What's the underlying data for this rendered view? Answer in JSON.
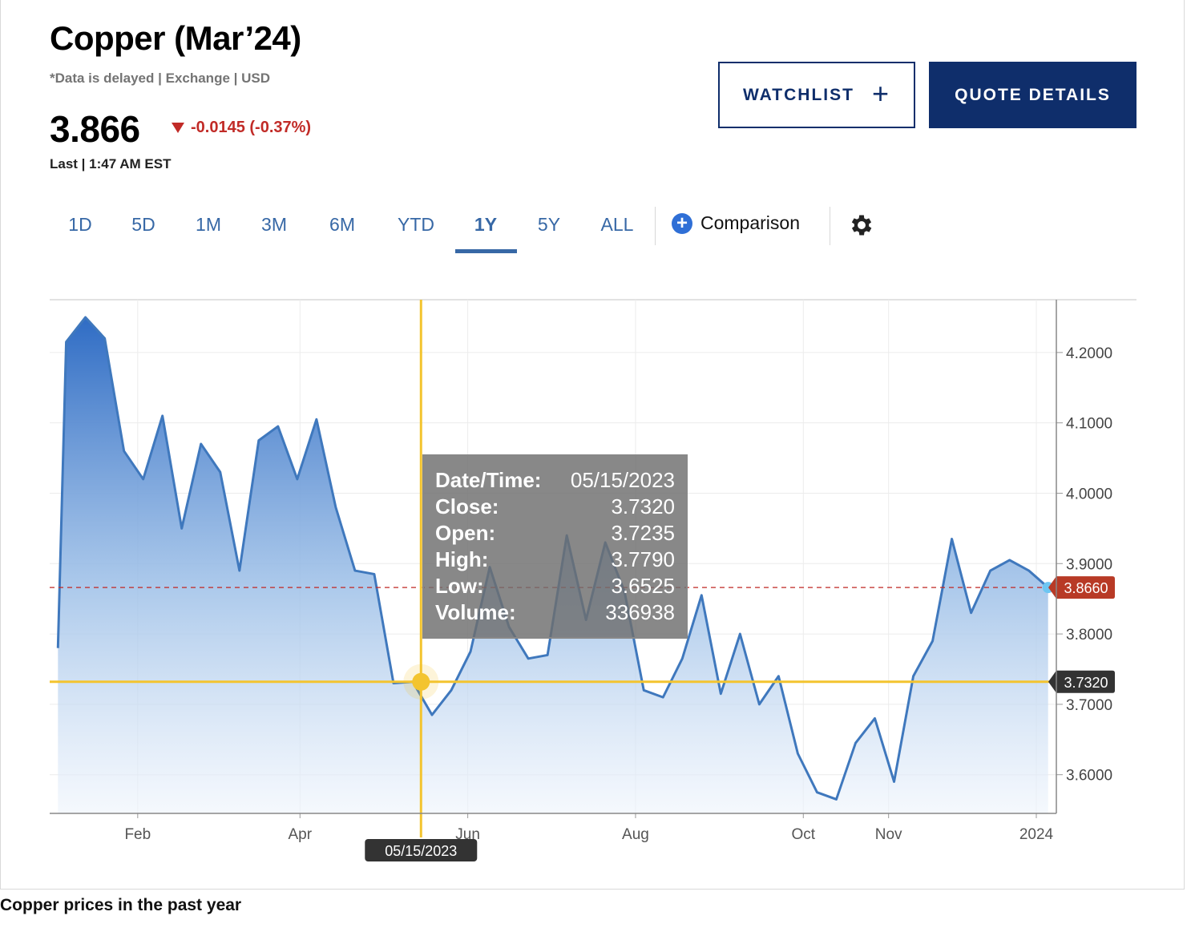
{
  "header": {
    "title": "Copper (Mar’24)",
    "subtitle": "*Data is delayed | Exchange | USD",
    "price": "3.866",
    "change": "-0.0145 (-0.37%)",
    "last_time": "Last | 1:47 AM EST"
  },
  "buttons": {
    "watchlist": "WATCHLIST",
    "quote_details": "QUOTE DETAILS"
  },
  "tabs": [
    "1D",
    "5D",
    "1M",
    "3M",
    "6M",
    "YTD",
    "1Y",
    "5Y",
    "ALL"
  ],
  "active_tab": "1Y",
  "comparison_label": "Comparison",
  "icons": {
    "down": "triangle-down-icon",
    "plus": "plus-icon",
    "comparison": "plus-circle-icon",
    "settings": "gear-icon"
  },
  "colors": {
    "navy": "#0f2e6b",
    "link_blue": "#3768a6",
    "line": "#3f78bd",
    "negative": "#c12b27",
    "crosshair": "#f3c42f"
  },
  "tooltip": {
    "rows": [
      {
        "label": "Date/Time:",
        "value": "05/15/2023"
      },
      {
        "label": "Close:",
        "value": "3.7320"
      },
      {
        "label": "Open:",
        "value": "3.7235"
      },
      {
        "label": "High:",
        "value": "3.7790"
      },
      {
        "label": "Low:",
        "value": "3.6525"
      },
      {
        "label": "Volume:",
        "value": "336938"
      }
    ]
  },
  "caption": "Copper prices in the past year",
  "chart_data": {
    "type": "area",
    "title": "",
    "xlabel": "",
    "ylabel": "",
    "x_ticks": [
      "Feb",
      "Apr",
      "Jun",
      "Aug",
      "Oct",
      "Nov",
      "2024"
    ],
    "y_ticks": [
      "4.2000",
      "4.1000",
      "4.0000",
      "3.9000",
      "3.8000",
      "3.7000",
      "3.6000"
    ],
    "ylim": [
      3.545,
      4.275
    ],
    "grid": true,
    "y_axis_side": "right",
    "last_value_label": "3.8660",
    "last_value": 3.866,
    "crosshair": {
      "date": "05/15/2023",
      "value": 3.732,
      "value_label": "3.7320"
    },
    "series": [
      {
        "points": [
          [
            "2023-01-03",
            3.78
          ],
          [
            "2023-01-06",
            4.215
          ],
          [
            "2023-01-13",
            4.25
          ],
          [
            "2023-01-20",
            4.22
          ],
          [
            "2023-01-27",
            4.06
          ],
          [
            "2023-02-03",
            4.02
          ],
          [
            "2023-02-10",
            4.11
          ],
          [
            "2023-02-17",
            3.95
          ],
          [
            "2023-02-24",
            4.07
          ],
          [
            "2023-03-03",
            4.03
          ],
          [
            "2023-03-10",
            3.89
          ],
          [
            "2023-03-17",
            4.075
          ],
          [
            "2023-03-24",
            4.095
          ],
          [
            "2023-03-31",
            4.02
          ],
          [
            "2023-04-07",
            4.105
          ],
          [
            "2023-04-14",
            3.98
          ],
          [
            "2023-04-21",
            3.89
          ],
          [
            "2023-04-28",
            3.885
          ],
          [
            "2023-05-05",
            3.73
          ],
          [
            "2023-05-12",
            3.732
          ],
          [
            "2023-05-19",
            3.685
          ],
          [
            "2023-05-26",
            3.72
          ],
          [
            "2023-06-02",
            3.775
          ],
          [
            "2023-06-09",
            3.895
          ],
          [
            "2023-06-16",
            3.81
          ],
          [
            "2023-06-23",
            3.765
          ],
          [
            "2023-06-30",
            3.77
          ],
          [
            "2023-07-07",
            3.94
          ],
          [
            "2023-07-14",
            3.82
          ],
          [
            "2023-07-21",
            3.93
          ],
          [
            "2023-07-28",
            3.86
          ],
          [
            "2023-08-04",
            3.72
          ],
          [
            "2023-08-11",
            3.71
          ],
          [
            "2023-08-18",
            3.765
          ],
          [
            "2023-08-25",
            3.855
          ],
          [
            "2023-09-01",
            3.715
          ],
          [
            "2023-09-08",
            3.8
          ],
          [
            "2023-09-15",
            3.7
          ],
          [
            "2023-09-22",
            3.74
          ],
          [
            "2023-09-29",
            3.63
          ],
          [
            "2023-10-06",
            3.575
          ],
          [
            "2023-10-13",
            3.565
          ],
          [
            "2023-10-20",
            3.645
          ],
          [
            "2023-10-27",
            3.68
          ],
          [
            "2023-11-03",
            3.59
          ],
          [
            "2023-11-10",
            3.74
          ],
          [
            "2023-11-17",
            3.79
          ],
          [
            "2023-11-24",
            3.935
          ],
          [
            "2023-12-01",
            3.83
          ],
          [
            "2023-12-08",
            3.89
          ],
          [
            "2023-12-15",
            3.905
          ],
          [
            "2023-12-22",
            3.89
          ],
          [
            "2023-12-29",
            3.866
          ]
        ]
      }
    ]
  }
}
